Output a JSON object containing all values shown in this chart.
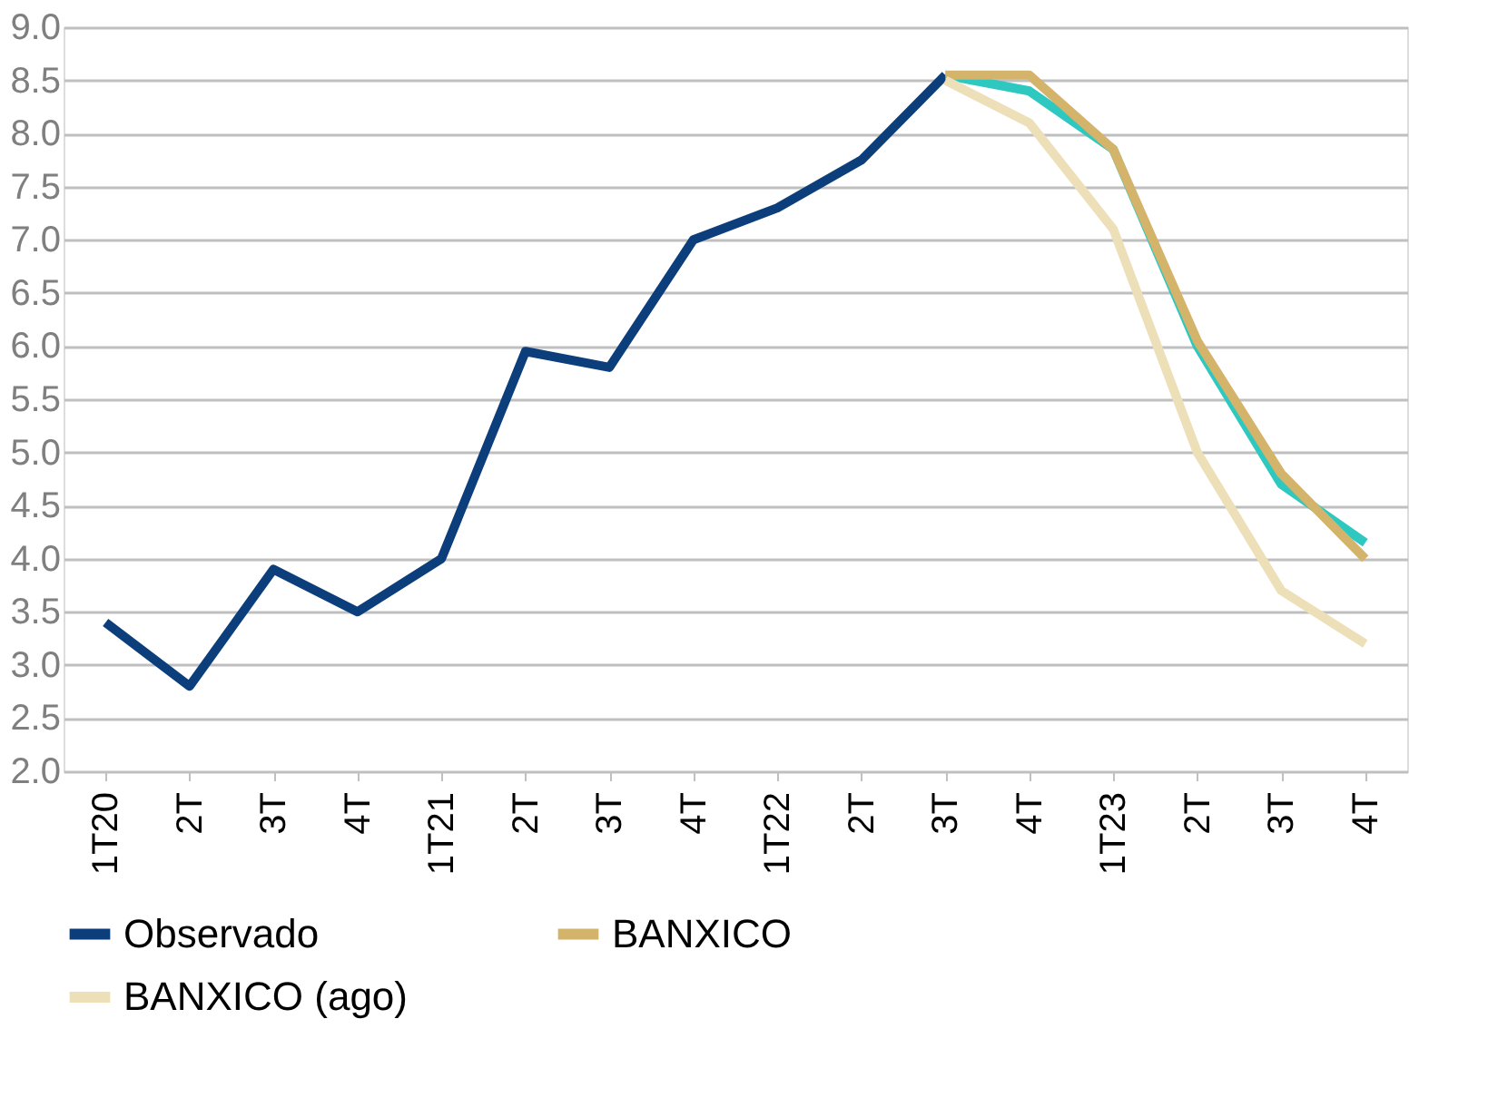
{
  "chart_data": {
    "type": "line",
    "categories": [
      "1T20",
      "2T",
      "3T",
      "4T",
      "1T21",
      "2T",
      "3T",
      "4T",
      "1T22",
      "2T",
      "3T",
      "4T",
      "1T23",
      "2T",
      "3T",
      "4T"
    ],
    "series": [
      {
        "name": "Observado",
        "color": "#0b3e7a",
        "values": [
          3.4,
          2.8,
          3.9,
          3.5,
          4.0,
          5.95,
          5.8,
          7.0,
          7.3,
          7.75,
          8.55,
          null,
          null,
          null,
          null,
          null
        ]
      },
      {
        "color": "#2ec8c0",
        "values": [
          null,
          null,
          null,
          null,
          null,
          null,
          null,
          null,
          null,
          null,
          8.55,
          8.4,
          7.85,
          6.0,
          4.7,
          4.15
        ]
      },
      {
        "name": "BANXICO",
        "color": "#d4b36a",
        "values": [
          null,
          null,
          null,
          null,
          null,
          null,
          null,
          null,
          null,
          null,
          8.55,
          8.55,
          7.85,
          6.05,
          4.8,
          4.0
        ]
      },
      {
        "name": "BANXICO (ago)",
        "color": "#ede0b8",
        "values": [
          null,
          null,
          null,
          null,
          null,
          null,
          null,
          null,
          null,
          null,
          8.5,
          8.1,
          7.1,
          5.0,
          3.7,
          3.2
        ]
      }
    ],
    "ylim": [
      2.0,
      9.0
    ],
    "yticks": [
      {
        "value": 2,
        "label": "2.0"
      },
      2.5,
      {
        "value": 3,
        "label": "3.0"
      },
      3.5,
      {
        "value": 4,
        "label": "4.0"
      },
      4.5,
      {
        "value": 5,
        "label": "5.0"
      },
      5.5,
      {
        "value": 6,
        "label": "6.0"
      },
      6.5,
      {
        "value": 7,
        "label": "7.0"
      },
      7.5,
      {
        "value": 8,
        "label": "8.0"
      },
      8.5,
      {
        "value": 9,
        "label": "9.0"
      }
    ],
    "grid": "y",
    "legend": "bottom",
    "marker": "none",
    "line_style": "solid"
  }
}
